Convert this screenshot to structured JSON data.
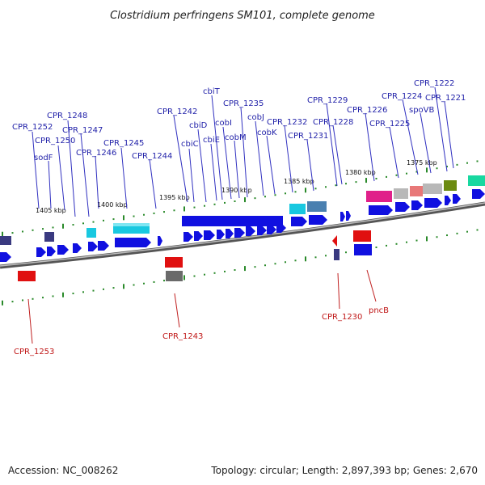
{
  "title": "Clostridium perfringens SM101, complete genome",
  "footer": {
    "accession": "Accession: NC_008262",
    "topology": "Topology: circular; Length: 2,897,393 bp; Genes: 2,670"
  },
  "scale_labels": [
    "1405 kbp",
    "1400 kbp",
    "1395 kbp",
    "1390 kbp",
    "1385 kbp",
    "1380 kbp",
    "1375 kbp"
  ],
  "genes_upper": [
    "CPR_1252",
    "sodF",
    "CPR_1250",
    "CPR_1248",
    "CPR_1247",
    "CPR_1246",
    "CPR_1245",
    "CPR_1244",
    "CPR_1242",
    "cbiC",
    "cbiD",
    "cbiE",
    "cbiT",
    "cobI",
    "CPR_1235",
    "cobM",
    "cobJ",
    "cobK",
    "CPR_1232",
    "CPR_1231",
    "CPR_1229",
    "CPR_1228",
    "CPR_1226",
    "CPR_1225",
    "CPR_1224",
    "spoVB",
    "CPR_1222",
    "CPR_1221"
  ],
  "genes_lower": [
    "CPR_1253",
    "CPR_1243",
    "CPR_1230",
    "pncB"
  ],
  "colors": {
    "forward": "#1010e0",
    "reverse": "#e01010",
    "cyan": "#18c8e0",
    "magenta": "#e0208a",
    "grey": "#b8b8b8",
    "salmon": "#e87878",
    "olive": "#6b8a10",
    "teal": "#18d8a0",
    "navy": "#3a3a80",
    "steel": "#4a80b0",
    "backbone": "#7a7a7a"
  }
}
